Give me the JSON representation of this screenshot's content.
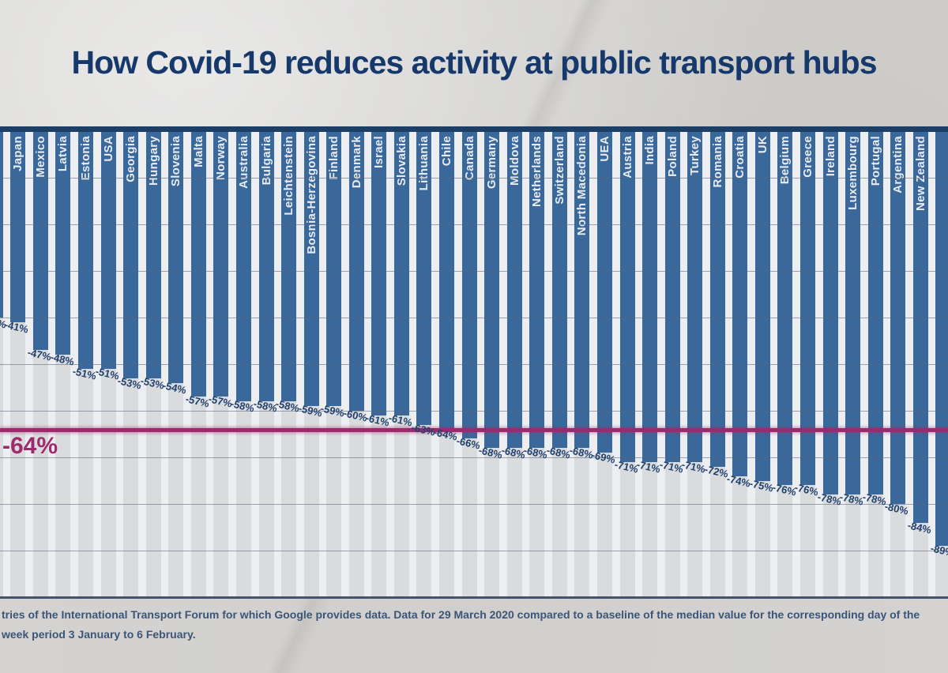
{
  "title": "How Covid-19 reduces activity at public transport hubs",
  "chart_data": {
    "type": "bar",
    "title": "How Covid-19 reduces activity at public transport hubs",
    "unit": "% change in activity",
    "orientation": "vertical, bars hang downward from 0% baseline",
    "ylim": [
      0,
      -100
    ],
    "gridlines": true,
    "gridline_step_pct": 10,
    "categories": [
      "Japan",
      "Mexico",
      "Latvia",
      "Estonia",
      "USA",
      "Georgia",
      "Hungary",
      "Slovenia",
      "Malta",
      "Norway",
      "Australia",
      "Bulgaria",
      "Leichtenstein",
      "Bosnia-Herzegovina",
      "Finland",
      "Denmark",
      "Israel",
      "Slovakia",
      "Lithuania",
      "Chile",
      "Canada",
      "Germany",
      "Moldova",
      "Netherlands",
      "Switzerland",
      "North Macedonia",
      "UEA",
      "Austria",
      "India",
      "Poland",
      "Turkey",
      "Romania",
      "Croatia",
      "UK",
      "Belgium",
      "Greece",
      "Ireland",
      "Luxembourg",
      "Portugal",
      "Argentina",
      "New Zealand"
    ],
    "values": [
      -41,
      -47,
      -48,
      -51,
      -51,
      -53,
      -53,
      -54,
      -57,
      -57,
      -58,
      -58,
      -58,
      -59,
      -59,
      -60,
      -61,
      -61,
      -63,
      -64,
      -66,
      -68,
      -68,
      -68,
      -68,
      -68,
      -69,
      -71,
      -71,
      -71,
      -71,
      -72,
      -74,
      -75,
      -76,
      -76,
      -78,
      -78,
      -78,
      -80,
      -84
    ],
    "average_line": {
      "value": -64,
      "label": "-64%"
    },
    "edge_partial_bars": {
      "left": {
        "estimated_value": -40,
        "visible_label_fragment": "%"
      },
      "right": {
        "estimated_value": -89,
        "visible_label_fragment": "-8"
      }
    }
  },
  "footnote": {
    "line1": "tries of the International Transport Forum for which Google provides data. Data for 29 March 2020 compared to a baseline of the median value for the corresponding day of the",
    "line2": "week period 3 January to 6 February."
  },
  "colors": {
    "background": "#d4d3d1",
    "title_text": "#16386b",
    "bar": "#3a689b",
    "bar_country_text": "#e8ecf1",
    "value_label_text": "#1f3f6d",
    "top_band": "#1d3f66",
    "gap_stripe": "#eceef1",
    "column_stripe": "#dadbdd",
    "gridline": "rgba(88,100,120,0.55)",
    "average_line": "#9e2a6e",
    "bottom_axis": "#44536b",
    "footnote_text": "#3c5577"
  }
}
